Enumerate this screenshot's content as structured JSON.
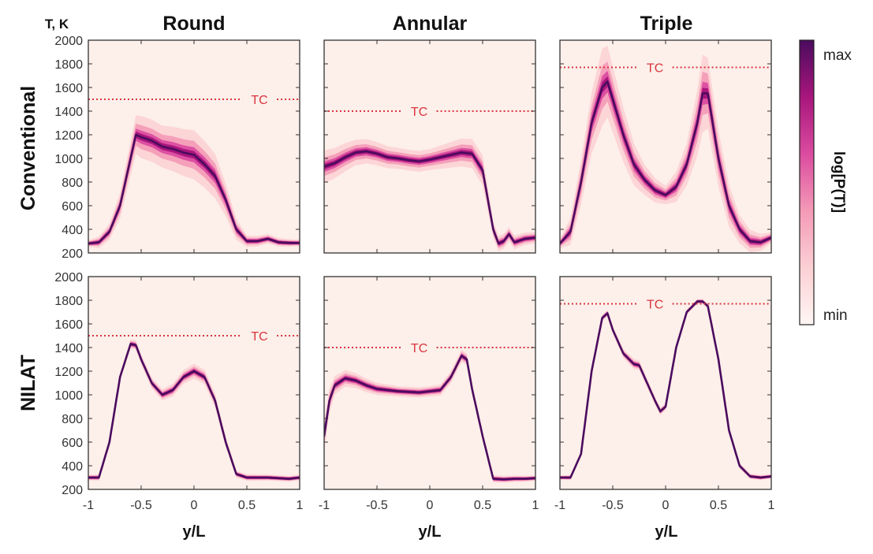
{
  "colors": {
    "background": "#fdefea",
    "tc_line": "#d9363e",
    "cmap": [
      "#fff6f3",
      "#fbd0d4",
      "#f49ab7",
      "#db4ca0",
      "#a8167c",
      "#4a0b5e"
    ]
  },
  "chart_data": {
    "type": "heatmap",
    "ylabel": "T, K",
    "xlabel": "y/L",
    "xlim": [
      -1,
      1
    ],
    "ylim": [
      200,
      2000
    ],
    "x_ticks": [
      "-1",
      "-0.5",
      "0",
      "0.5",
      "1"
    ],
    "y_ticks": [
      "2000",
      "1800",
      "1600",
      "1400",
      "1200",
      "1000",
      "800",
      "600",
      "400",
      "200"
    ],
    "columns": [
      "Round",
      "Annular",
      "Triple"
    ],
    "rows": [
      "Conventional",
      "NILAT"
    ],
    "colorbar": {
      "label": "log[P(T)]",
      "max_label": "max",
      "min_label": "min"
    },
    "panels": [
      {
        "row": "Conventional",
        "col": "Round",
        "tc": 1500,
        "tc_label": "TC",
        "mean": [
          [
            -1,
            280
          ],
          [
            -0.9,
            290
          ],
          [
            -0.8,
            380
          ],
          [
            -0.7,
            600
          ],
          [
            -0.6,
            1000
          ],
          [
            -0.55,
            1200
          ],
          [
            -0.5,
            1180
          ],
          [
            -0.4,
            1150
          ],
          [
            -0.3,
            1100
          ],
          [
            -0.2,
            1080
          ],
          [
            -0.1,
            1050
          ],
          [
            0,
            1030
          ],
          [
            0.1,
            950
          ],
          [
            0.2,
            850
          ],
          [
            0.3,
            650
          ],
          [
            0.4,
            400
          ],
          [
            0.5,
            300
          ],
          [
            0.6,
            300
          ],
          [
            0.7,
            320
          ],
          [
            0.8,
            290
          ],
          [
            0.9,
            285
          ],
          [
            1,
            285
          ]
        ],
        "spread": [
          [
            -1,
            20
          ],
          [
            -0.8,
            60
          ],
          [
            -0.6,
            140
          ],
          [
            -0.5,
            170
          ],
          [
            -0.3,
            170
          ],
          [
            0,
            200
          ],
          [
            0.2,
            180
          ],
          [
            0.4,
            80
          ],
          [
            0.5,
            40
          ],
          [
            1,
            20
          ]
        ]
      },
      {
        "row": "Conventional",
        "col": "Annular",
        "tc": 1400,
        "tc_label": "TC",
        "mean": [
          [
            -1,
            930
          ],
          [
            -0.9,
            960
          ],
          [
            -0.8,
            1010
          ],
          [
            -0.7,
            1050
          ],
          [
            -0.6,
            1060
          ],
          [
            -0.5,
            1040
          ],
          [
            -0.4,
            1010
          ],
          [
            -0.3,
            1000
          ],
          [
            -0.2,
            985
          ],
          [
            -0.1,
            975
          ],
          [
            0,
            990
          ],
          [
            0.1,
            1010
          ],
          [
            0.2,
            1030
          ],
          [
            0.3,
            1050
          ],
          [
            0.4,
            1040
          ],
          [
            0.5,
            900
          ],
          [
            0.6,
            400
          ],
          [
            0.65,
            280
          ],
          [
            0.7,
            300
          ],
          [
            0.75,
            360
          ],
          [
            0.8,
            290
          ],
          [
            0.9,
            320
          ],
          [
            1,
            330
          ]
        ],
        "spread": [
          [
            -1,
            130
          ],
          [
            -0.7,
            100
          ],
          [
            -0.3,
            80
          ],
          [
            0,
            80
          ],
          [
            0.3,
            110
          ],
          [
            0.5,
            120
          ],
          [
            0.6,
            60
          ],
          [
            1,
            40
          ]
        ]
      },
      {
        "row": "Conventional",
        "col": "Triple",
        "tc": 1770,
        "tc_label": "TC",
        "mean": [
          [
            -1,
            280
          ],
          [
            -0.9,
            380
          ],
          [
            -0.8,
            800
          ],
          [
            -0.7,
            1300
          ],
          [
            -0.6,
            1600
          ],
          [
            -0.55,
            1650
          ],
          [
            -0.5,
            1500
          ],
          [
            -0.4,
            1200
          ],
          [
            -0.3,
            950
          ],
          [
            -0.2,
            820
          ],
          [
            -0.1,
            730
          ],
          [
            0,
            690
          ],
          [
            0.1,
            760
          ],
          [
            0.2,
            950
          ],
          [
            0.3,
            1300
          ],
          [
            0.35,
            1550
          ],
          [
            0.4,
            1550
          ],
          [
            0.5,
            1000
          ],
          [
            0.6,
            600
          ],
          [
            0.7,
            400
          ],
          [
            0.8,
            300
          ],
          [
            0.9,
            290
          ],
          [
            1,
            330
          ]
        ],
        "spread": [
          [
            -1,
            30
          ],
          [
            -0.8,
            180
          ],
          [
            -0.6,
            320
          ],
          [
            -0.4,
            220
          ],
          [
            -0.2,
            120
          ],
          [
            0,
            70
          ],
          [
            0.2,
            170
          ],
          [
            0.35,
            320
          ],
          [
            0.5,
            230
          ],
          [
            0.7,
            110
          ],
          [
            1,
            40
          ]
        ]
      },
      {
        "row": "NILAT",
        "col": "Round",
        "tc": 1500,
        "tc_label": "TC",
        "mean": [
          [
            -1,
            300
          ],
          [
            -0.9,
            300
          ],
          [
            -0.8,
            600
          ],
          [
            -0.7,
            1150
          ],
          [
            -0.6,
            1430
          ],
          [
            -0.55,
            1420
          ],
          [
            -0.5,
            1300
          ],
          [
            -0.4,
            1100
          ],
          [
            -0.3,
            1000
          ],
          [
            -0.2,
            1040
          ],
          [
            -0.1,
            1150
          ],
          [
            0,
            1200
          ],
          [
            0.1,
            1150
          ],
          [
            0.2,
            950
          ],
          [
            0.3,
            600
          ],
          [
            0.4,
            330
          ],
          [
            0.5,
            300
          ],
          [
            0.7,
            300
          ],
          [
            0.9,
            290
          ],
          [
            1,
            300
          ]
        ],
        "spread": [
          [
            -1,
            15
          ],
          [
            -0.6,
            30
          ],
          [
            -0.3,
            40
          ],
          [
            0,
            55
          ],
          [
            0.2,
            50
          ],
          [
            0.4,
            20
          ],
          [
            1,
            15
          ]
        ]
      },
      {
        "row": "NILAT",
        "col": "Annular",
        "tc": 1400,
        "tc_label": "TC",
        "mean": [
          [
            -1,
            650
          ],
          [
            -0.95,
            950
          ],
          [
            -0.9,
            1080
          ],
          [
            -0.8,
            1140
          ],
          [
            -0.7,
            1120
          ],
          [
            -0.6,
            1080
          ],
          [
            -0.5,
            1050
          ],
          [
            -0.4,
            1040
          ],
          [
            -0.3,
            1030
          ],
          [
            -0.2,
            1025
          ],
          [
            -0.1,
            1020
          ],
          [
            0,
            1030
          ],
          [
            0.1,
            1040
          ],
          [
            0.2,
            1150
          ],
          [
            0.3,
            1330
          ],
          [
            0.35,
            1300
          ],
          [
            0.4,
            1050
          ],
          [
            0.5,
            650
          ],
          [
            0.6,
            290
          ],
          [
            0.7,
            285
          ],
          [
            0.8,
            290
          ],
          [
            0.9,
            290
          ],
          [
            1,
            295
          ]
        ],
        "spread": [
          [
            -1,
            120
          ],
          [
            -0.9,
            70
          ],
          [
            -0.7,
            55
          ],
          [
            -0.3,
            35
          ],
          [
            0,
            35
          ],
          [
            0.3,
            45
          ],
          [
            0.5,
            25
          ],
          [
            1,
            15
          ]
        ]
      },
      {
        "row": "NILAT",
        "col": "Triple",
        "tc": 1770,
        "tc_label": "TC",
        "mean": [
          [
            -1,
            300
          ],
          [
            -0.9,
            300
          ],
          [
            -0.8,
            500
          ],
          [
            -0.7,
            1200
          ],
          [
            -0.6,
            1650
          ],
          [
            -0.55,
            1690
          ],
          [
            -0.5,
            1550
          ],
          [
            -0.4,
            1350
          ],
          [
            -0.3,
            1260
          ],
          [
            -0.25,
            1250
          ],
          [
            -0.2,
            1150
          ],
          [
            -0.1,
            950
          ],
          [
            -0.05,
            860
          ],
          [
            0,
            900
          ],
          [
            0.1,
            1400
          ],
          [
            0.2,
            1700
          ],
          [
            0.3,
            1790
          ],
          [
            0.35,
            1790
          ],
          [
            0.4,
            1750
          ],
          [
            0.5,
            1300
          ],
          [
            0.6,
            700
          ],
          [
            0.7,
            400
          ],
          [
            0.8,
            310
          ],
          [
            0.9,
            300
          ],
          [
            1,
            310
          ]
        ],
        "spread": [
          [
            -1,
            10
          ],
          [
            -0.6,
            18
          ],
          [
            -0.3,
            35
          ],
          [
            0,
            20
          ],
          [
            0.3,
            12
          ],
          [
            0.6,
            18
          ],
          [
            1,
            10
          ]
        ]
      }
    ]
  }
}
